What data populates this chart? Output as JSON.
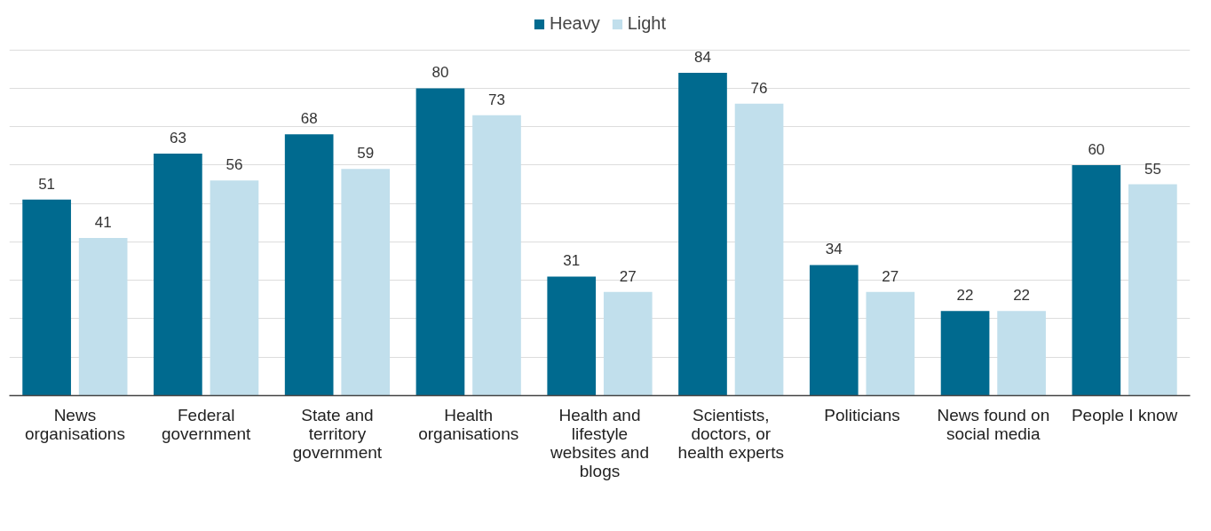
{
  "chart_data": {
    "type": "bar",
    "categories": [
      "News organisations",
      "Federal government",
      "State and territory government",
      "Health organisations",
      "Health and lifestyle websites and blogs",
      "Scientists, doctors, or health experts",
      "Politicians",
      "News found on social media",
      "People I know"
    ],
    "series": [
      {
        "name": "Heavy",
        "color": "#006a8f",
        "values": [
          51,
          63,
          68,
          80,
          31,
          84,
          34,
          22,
          60
        ]
      },
      {
        "name": "Light",
        "color": "#c1dfec",
        "values": [
          41,
          56,
          59,
          73,
          27,
          76,
          27,
          22,
          55
        ]
      }
    ],
    "yticks": [
      {
        "value": 0,
        "label": null
      },
      {
        "value": 10,
        "label": null
      },
      {
        "value": 20,
        "label": null
      },
      {
        "value": 30,
        "label": null
      },
      {
        "value": 40,
        "label": null
      },
      {
        "value": 50,
        "label": null
      },
      {
        "value": 60,
        "label": null
      },
      {
        "value": 70,
        "label": null
      },
      {
        "value": 80,
        "label": null
      },
      {
        "value": 90,
        "label": null
      }
    ],
    "tick_labels": "x",
    "grid": "y",
    "legend": "top",
    "data_labels": true
  }
}
